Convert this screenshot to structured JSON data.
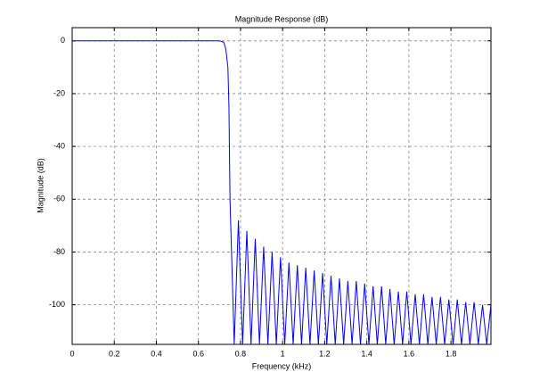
{
  "chart_data": {
    "type": "line",
    "title": "Magnitude Response (dB)",
    "x_label": "Frequency (kHz)",
    "y_label": "Magnitude (dB)",
    "color": "#0000ff",
    "grid": true,
    "xlim": [
      0,
      1.99
    ],
    "ylim": [
      -115,
      5
    ],
    "xticks": [
      0,
      0.2,
      0.4,
      0.6,
      0.8,
      1,
      1.2,
      1.4,
      1.6,
      1.8
    ],
    "yticks": [
      0,
      -20,
      -40,
      -60,
      -80,
      -100
    ],
    "x": [
      0,
      0.1,
      0.2,
      0.3,
      0.4,
      0.5,
      0.6,
      0.7,
      0.72,
      0.73,
      0.74,
      0.745,
      0.75,
      0.77,
      0.79,
      0.81,
      0.83,
      0.85,
      0.87,
      0.89,
      0.91,
      0.93,
      0.95,
      0.97,
      0.99,
      1.01,
      1.03,
      1.05,
      1.07,
      1.09,
      1.11,
      1.13,
      1.15,
      1.17,
      1.19,
      1.21,
      1.23,
      1.25,
      1.27,
      1.29,
      1.31,
      1.33,
      1.35,
      1.37,
      1.39,
      1.41,
      1.43,
      1.45,
      1.47,
      1.49,
      1.51,
      1.53,
      1.55,
      1.57,
      1.59,
      1.61,
      1.63,
      1.65,
      1.67,
      1.69,
      1.71,
      1.73,
      1.75,
      1.77,
      1.79,
      1.81,
      1.83,
      1.85,
      1.87,
      1.89,
      1.91,
      1.93,
      1.95,
      1.97,
      1.99
    ],
    "values": [
      0,
      0,
      0,
      0,
      0,
      0,
      0,
      0,
      -0.5,
      -3,
      -10,
      -25,
      -60,
      -115,
      -68,
      -115,
      -72,
      -115,
      -75,
      -115,
      -78,
      -115,
      -80,
      -115,
      -82,
      -115,
      -84,
      -115,
      -85,
      -115,
      -86,
      -115,
      -87,
      -115,
      -88,
      -115,
      -89,
      -115,
      -90,
      -115,
      -91,
      -115,
      -91,
      -115,
      -92,
      -115,
      -93,
      -115,
      -93,
      -115,
      -94,
      -115,
      -95,
      -115,
      -95,
      -115,
      -96,
      -115,
      -96,
      -115,
      -97,
      -115,
      -97,
      -115,
      -98,
      -115,
      -98,
      -115,
      -99,
      -115,
      -99,
      -115,
      -100,
      -115,
      -100
    ]
  }
}
